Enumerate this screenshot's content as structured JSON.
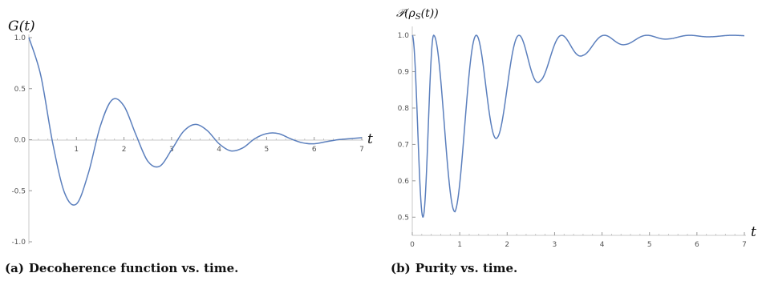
{
  "chart_data": [
    {
      "type": "line",
      "ylabel": "G(t)",
      "xlabel": "t",
      "xlim": [
        0,
        7
      ],
      "ylim": [
        -1.0,
        1.0
      ],
      "xticks": [
        "1",
        "2",
        "3",
        "4",
        "5",
        "6",
        "7"
      ],
      "yticks": [
        "1.0",
        "0.5",
        "0.0",
        "-0.5",
        "-1.0"
      ],
      "yticks_values": [
        1.0,
        0.5,
        0.0,
        -0.5,
        -1.0
      ],
      "grid": false,
      "line_color": "#5b7fbd",
      "series": [
        {
          "x": [
            0,
            0.25,
            0.5,
            0.75,
            1.0,
            1.25,
            1.5,
            1.75,
            2.0,
            2.25,
            2.5,
            2.75,
            3.0,
            3.25,
            3.5,
            3.75,
            4.0,
            4.25,
            4.5,
            4.75,
            5.0,
            5.25,
            5.5,
            5.75,
            6.0,
            6.25,
            6.5,
            6.75,
            7.0
          ],
          "y": [
            1.0,
            0.63,
            -0.03,
            -0.52,
            -0.63,
            -0.33,
            0.13,
            0.39,
            0.33,
            0.05,
            -0.21,
            -0.26,
            -0.1,
            0.08,
            0.15,
            0.09,
            -0.04,
            -0.11,
            -0.08,
            0.01,
            0.06,
            0.06,
            0.01,
            -0.03,
            -0.04,
            -0.02,
            0.0,
            0.01,
            0.02
          ]
        }
      ]
    },
    {
      "type": "line",
      "ylabel": "𝒫(ρ",
      "ylabel_sub": "S",
      "ylabel_tail": "(t))",
      "xlabel": "t",
      "xlim": [
        0,
        7
      ],
      "ylim": [
        0.45,
        1.02
      ],
      "xticks": [
        "0",
        "1",
        "2",
        "3",
        "4",
        "5",
        "6",
        "7"
      ],
      "yticks": [
        "1.0",
        "0.9",
        "0.8",
        "0.7",
        "0.6",
        "0.5"
      ],
      "yticks_values": [
        1.0,
        0.9,
        0.8,
        0.7,
        0.6,
        0.5
      ],
      "grid": false,
      "line_color": "#5b7fbd",
      "envelope": [
        [
          0.0,
          0.5
        ],
        [
          0.25,
          0.5
        ],
        [
          0.9,
          0.515
        ],
        [
          1.8,
          0.72
        ],
        [
          2.7,
          0.875
        ],
        [
          3.6,
          0.945
        ],
        [
          4.5,
          0.975
        ],
        [
          5.4,
          0.99
        ],
        [
          6.3,
          0.996
        ],
        [
          7.0,
          0.998
        ]
      ],
      "period": 0.9
    }
  ],
  "captions": {
    "a_tag": "(a)",
    "a_text": "Decoherence function vs. time.",
    "b_tag": "(b)",
    "b_text": "Purity vs. time."
  }
}
